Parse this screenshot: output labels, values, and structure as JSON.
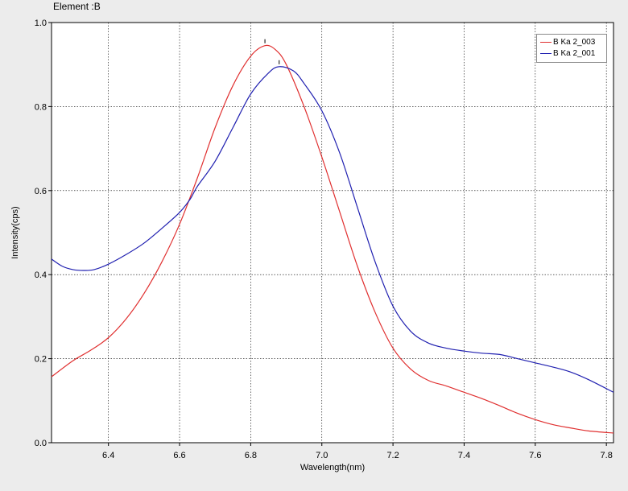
{
  "chart_data": {
    "type": "line",
    "title": "Element :B",
    "xlabel": "Wavelength(nm)",
    "ylabel": "Intensity(cps)",
    "xlim": [
      6.24,
      7.82
    ],
    "ylim": [
      0.0,
      1.0
    ],
    "x_ticks": [
      "6.4",
      "6.6",
      "6.8",
      "7.0",
      "7.2",
      "7.4",
      "7.6",
      "7.8"
    ],
    "y_ticks": [
      "0.0",
      "0.2",
      "0.4",
      "0.6",
      "0.8",
      "1.0"
    ],
    "grid": true,
    "legend_position": "top-right",
    "series": [
      {
        "name": "B Ka 2_003",
        "color": "#e03030",
        "peak_marker": [
          6.84,
          0.945
        ],
        "points": [
          [
            6.24,
            0.157
          ],
          [
            6.3,
            0.195
          ],
          [
            6.35,
            0.22
          ],
          [
            6.4,
            0.25
          ],
          [
            6.45,
            0.295
          ],
          [
            6.5,
            0.355
          ],
          [
            6.55,
            0.43
          ],
          [
            6.6,
            0.52
          ],
          [
            6.65,
            0.63
          ],
          [
            6.7,
            0.75
          ],
          [
            6.75,
            0.85
          ],
          [
            6.8,
            0.92
          ],
          [
            6.84,
            0.945
          ],
          [
            6.87,
            0.935
          ],
          [
            6.9,
            0.9
          ],
          [
            6.95,
            0.8
          ],
          [
            7.0,
            0.68
          ],
          [
            7.05,
            0.55
          ],
          [
            7.1,
            0.42
          ],
          [
            7.15,
            0.31
          ],
          [
            7.2,
            0.225
          ],
          [
            7.25,
            0.175
          ],
          [
            7.3,
            0.148
          ],
          [
            7.35,
            0.135
          ],
          [
            7.4,
            0.12
          ],
          [
            7.45,
            0.105
          ],
          [
            7.5,
            0.088
          ],
          [
            7.55,
            0.07
          ],
          [
            7.6,
            0.055
          ],
          [
            7.65,
            0.043
          ],
          [
            7.7,
            0.035
          ],
          [
            7.75,
            0.028
          ],
          [
            7.82,
            0.023
          ]
        ]
      },
      {
        "name": "B Ka 2_001",
        "color": "#2020b0",
        "peak_marker": [
          6.88,
          0.895
        ],
        "points": [
          [
            6.24,
            0.437
          ],
          [
            6.27,
            0.42
          ],
          [
            6.3,
            0.412
          ],
          [
            6.33,
            0.41
          ],
          [
            6.36,
            0.412
          ],
          [
            6.4,
            0.425
          ],
          [
            6.45,
            0.448
          ],
          [
            6.5,
            0.475
          ],
          [
            6.55,
            0.51
          ],
          [
            6.6,
            0.548
          ],
          [
            6.63,
            0.58
          ],
          [
            6.65,
            0.61
          ],
          [
            6.7,
            0.67
          ],
          [
            6.75,
            0.75
          ],
          [
            6.8,
            0.83
          ],
          [
            6.85,
            0.88
          ],
          [
            6.88,
            0.895
          ],
          [
            6.92,
            0.885
          ],
          [
            6.95,
            0.855
          ],
          [
            7.0,
            0.79
          ],
          [
            7.05,
            0.69
          ],
          [
            7.1,
            0.56
          ],
          [
            7.15,
            0.43
          ],
          [
            7.2,
            0.325
          ],
          [
            7.25,
            0.265
          ],
          [
            7.3,
            0.237
          ],
          [
            7.35,
            0.225
          ],
          [
            7.4,
            0.218
          ],
          [
            7.45,
            0.213
          ],
          [
            7.5,
            0.21
          ],
          [
            7.55,
            0.2
          ],
          [
            7.6,
            0.19
          ],
          [
            7.65,
            0.18
          ],
          [
            7.7,
            0.168
          ],
          [
            7.75,
            0.15
          ],
          [
            7.82,
            0.12
          ]
        ]
      }
    ]
  }
}
